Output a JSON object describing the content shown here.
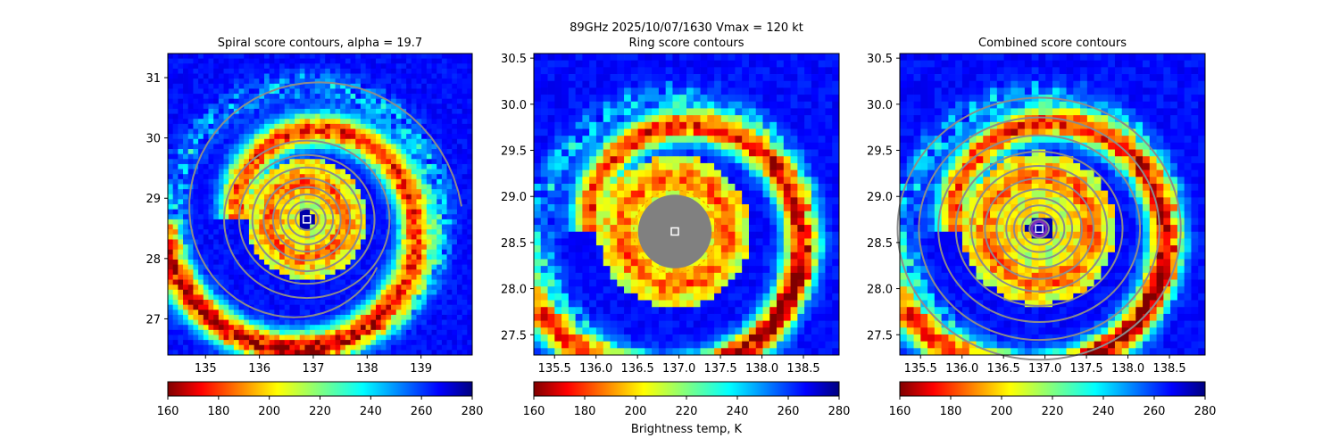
{
  "figure": {
    "suptitle_line1": "89GHz  2025/10/07/1630    Vmax = 120 kt",
    "colorbar_label": "Brightness temp, K"
  },
  "chart_data": [
    {
      "type": "heatmap",
      "title": "Spiral score contours, alpha = 19.7",
      "xlim": [
        134.3,
        139.95
      ],
      "ylim": [
        26.4,
        31.4
      ],
      "xticks": [
        135,
        136,
        137,
        138,
        139
      ],
      "yticks": [
        27,
        28,
        29,
        30,
        31
      ],
      "center": [
        136.88,
        28.65
      ],
      "overlay": "spiral contours",
      "colorbar": {
        "cmap": "jet_r",
        "range": [
          160,
          280
        ],
        "ticks": [
          160,
          180,
          200,
          220,
          240,
          260,
          280
        ]
      }
    },
    {
      "type": "heatmap",
      "title": "Ring score contours",
      "xlim": [
        135.25,
        138.93
      ],
      "ylim": [
        27.28,
        30.55
      ],
      "xticks": [
        135.5,
        136.0,
        136.5,
        137.0,
        137.5,
        138.0,
        138.5
      ],
      "yticks": [
        27.5,
        28.0,
        28.5,
        29.0,
        29.5,
        30.0,
        30.5
      ],
      "center": [
        136.95,
        28.62
      ],
      "overlay": "ring contours",
      "colorbar": {
        "cmap": "jet_r",
        "range": [
          160,
          280
        ],
        "ticks": [
          160,
          180,
          200,
          220,
          240,
          260,
          280
        ]
      }
    },
    {
      "type": "heatmap",
      "title": "Combined score contours",
      "xlim": [
        135.25,
        138.93
      ],
      "ylim": [
        27.28,
        30.55
      ],
      "xticks": [
        135.5,
        136.0,
        136.5,
        137.0,
        137.5,
        138.0,
        138.5
      ],
      "yticks": [
        27.5,
        28.0,
        28.5,
        29.0,
        29.5,
        30.0,
        30.5
      ],
      "center": [
        136.93,
        28.65
      ],
      "overlay": "combined contours",
      "colorbar": {
        "cmap": "jet_r",
        "range": [
          160,
          280
        ],
        "ticks": [
          160,
          180,
          200,
          220,
          240,
          260,
          280
        ]
      }
    }
  ]
}
